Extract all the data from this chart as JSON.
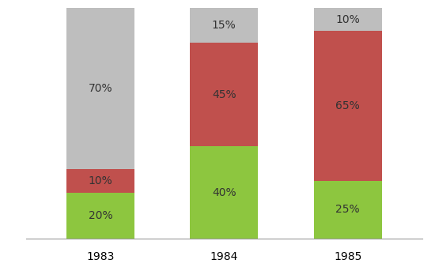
{
  "categories": [
    "1983",
    "1984",
    "1985"
  ],
  "segments": {
    "green": [
      20,
      40,
      25
    ],
    "red": [
      10,
      45,
      65
    ],
    "gray": [
      70,
      15,
      10
    ]
  },
  "labels": {
    "green": [
      "20%",
      "40%",
      "25%"
    ],
    "red": [
      "10%",
      "45%",
      "65%"
    ],
    "gray": [
      "70%",
      "15%",
      "10%"
    ]
  },
  "colors": {
    "green": "#8DC63F",
    "red": "#C0504D",
    "gray": "#BEBEBE"
  },
  "bar_width": 0.55,
  "ylim": [
    0,
    100
  ],
  "label_fontsize": 10,
  "tick_fontsize": 10,
  "background_color": "#FFFFFF",
  "text_color": "#333333"
}
